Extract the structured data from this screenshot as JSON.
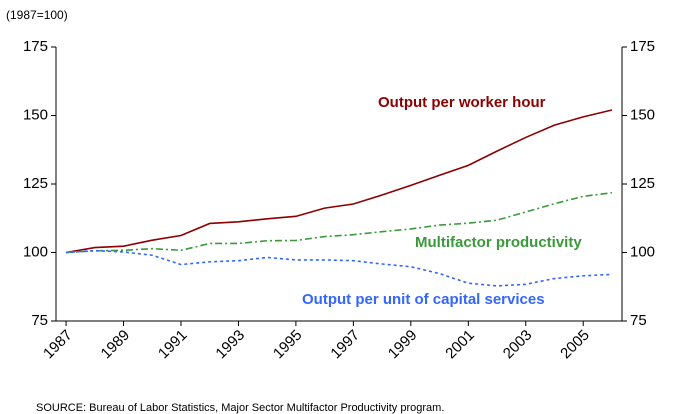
{
  "chart_data": {
    "type": "line",
    "unit_note": "(1987=100)",
    "source": "SOURCE:   Bureau of Labor Statistics, Major Sector Multifactor Productivity program.",
    "x": [
      1987,
      1988,
      1989,
      1990,
      1991,
      1992,
      1993,
      1994,
      1995,
      1996,
      1997,
      1998,
      1999,
      2000,
      2001,
      2002,
      2003,
      2004,
      2005,
      2006
    ],
    "series": [
      {
        "name": "Output per worker hour",
        "color": "#8b0000",
        "dash": "solid",
        "values": [
          100,
          101.8,
          102.3,
          104.5,
          106.2,
          110.6,
          111.2,
          112.3,
          113.2,
          116.2,
          117.7,
          121.0,
          124.5,
          128.2,
          131.8,
          137.0,
          142.0,
          146.5,
          149.5,
          152.0
        ]
      },
      {
        "name": "Multifactor productivity",
        "color": "#3a9a3a",
        "dash": "dashdot",
        "values": [
          100,
          100.6,
          100.8,
          101.4,
          100.8,
          103.3,
          103.3,
          104.3,
          104.4,
          105.8,
          106.5,
          107.6,
          108.6,
          110.0,
          110.7,
          111.8,
          114.8,
          117.8,
          120.5,
          121.8
        ]
      },
      {
        "name": "Output per unit of capital services",
        "color": "#3366ff",
        "dash": "dotted",
        "values": [
          100,
          100.7,
          100.2,
          99.0,
          95.6,
          96.6,
          97.0,
          98.2,
          97.3,
          97.3,
          97.0,
          95.8,
          94.8,
          92.3,
          88.8,
          87.8,
          88.4,
          90.5,
          91.5,
          92.0
        ]
      }
    ],
    "xlim": [
      1986.65,
      2006.35
    ],
    "xticks": [
      1987,
      1989,
      1991,
      1993,
      1995,
      1997,
      1999,
      2001,
      2003,
      2005
    ],
    "ylim": [
      75,
      175
    ],
    "yticks": [
      75,
      100,
      125,
      150,
      175
    ],
    "y2lim": [
      75,
      175
    ],
    "y2ticks": [
      75,
      100,
      125,
      150,
      175
    ]
  }
}
